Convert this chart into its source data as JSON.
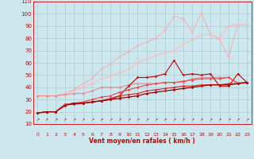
{
  "xlabel": "Vent moyen/en rafales ( km/h )",
  "xlim": [
    -0.5,
    23.5
  ],
  "ylim": [
    10,
    110
  ],
  "yticks": [
    10,
    20,
    30,
    40,
    50,
    60,
    70,
    80,
    90,
    100,
    110
  ],
  "xticks": [
    0,
    1,
    2,
    3,
    4,
    5,
    6,
    7,
    8,
    9,
    10,
    11,
    12,
    13,
    14,
    15,
    16,
    17,
    18,
    19,
    20,
    21,
    22,
    23
  ],
  "bg_color": "#cce8ee",
  "grid_color": "#aaccd4",
  "text_color": "#cc0000",
  "series": [
    {
      "x": [
        0,
        1,
        2,
        3,
        4,
        5,
        6,
        7,
        8,
        9,
        10,
        11,
        12,
        13,
        14,
        15,
        16,
        17,
        18,
        19,
        20,
        21,
        22,
        23
      ],
      "y": [
        19,
        20,
        20,
        26,
        26,
        27,
        28,
        29,
        30,
        33,
        41,
        48,
        48,
        49,
        51,
        62,
        50,
        51,
        50,
        51,
        41,
        41,
        51,
        44
      ],
      "color": "#cc0000",
      "lw": 0.8,
      "marker": "D",
      "ms": 1.5,
      "zorder": 5
    },
    {
      "x": [
        0,
        1,
        2,
        3,
        4,
        5,
        6,
        7,
        8,
        9,
        10,
        11,
        12,
        13,
        14,
        15,
        16,
        17,
        18,
        19,
        20,
        21,
        22,
        23
      ],
      "y": [
        33,
        33,
        33,
        34,
        35,
        35,
        37,
        40,
        40,
        40,
        42,
        43,
        43,
        43,
        44,
        44,
        44,
        47,
        48,
        48,
        48,
        48,
        44,
        44
      ],
      "color": "#ee8888",
      "lw": 0.8,
      "marker": "D",
      "ms": 1.5,
      "zorder": 4
    },
    {
      "x": [
        0,
        1,
        2,
        3,
        4,
        5,
        6,
        7,
        8,
        9,
        10,
        11,
        12,
        13,
        14,
        15,
        16,
        17,
        18,
        19,
        20,
        21,
        22,
        23
      ],
      "y": [
        33,
        33,
        33,
        35,
        37,
        40,
        43,
        47,
        49,
        52,
        55,
        60,
        63,
        66,
        68,
        70,
        75,
        79,
        83,
        83,
        80,
        90,
        91,
        91
      ],
      "color": "#ffbbbb",
      "lw": 0.8,
      "marker": "D",
      "ms": 1.5,
      "zorder": 3
    },
    {
      "x": [
        0,
        1,
        2,
        3,
        4,
        5,
        6,
        7,
        8,
        9,
        10,
        11,
        12,
        13,
        14,
        15,
        16,
        17,
        18,
        19,
        20,
        21,
        22,
        23
      ],
      "y": [
        33,
        33,
        33,
        35,
        38,
        43,
        47,
        55,
        59,
        65,
        69,
        74,
        77,
        80,
        87,
        98,
        96,
        85,
        101,
        83,
        79,
        65,
        91,
        91
      ],
      "color": "#ffaaaa",
      "lw": 0.7,
      "marker": "D",
      "ms": 1.2,
      "zorder": 2
    },
    {
      "x": [
        0,
        1,
        2,
        3,
        4,
        5,
        6,
        7,
        8,
        9,
        10,
        11,
        12,
        13,
        14,
        15,
        16,
        17,
        18,
        19,
        20,
        21,
        22,
        23
      ],
      "y": [
        19,
        20,
        20,
        25,
        27,
        27,
        28,
        29,
        30,
        31,
        32,
        33,
        35,
        36,
        37,
        38,
        39,
        40,
        41,
        42,
        42,
        42,
        43,
        44
      ],
      "color": "#990000",
      "lw": 0.9,
      "marker": "D",
      "ms": 1.5,
      "zorder": 6
    },
    {
      "x": [
        0,
        1,
        2,
        3,
        4,
        5,
        6,
        7,
        8,
        9,
        10,
        11,
        12,
        13,
        14,
        15,
        16,
        17,
        18,
        19,
        20,
        21,
        22,
        23
      ],
      "y": [
        19,
        20,
        20,
        26,
        27,
        27,
        28,
        29,
        31,
        33,
        34,
        35,
        37,
        38,
        39,
        40,
        41,
        41,
        42,
        42,
        42,
        43,
        43,
        44
      ],
      "color": "#dd2222",
      "lw": 0.8,
      "marker": "D",
      "ms": 1.5,
      "zorder": 5
    },
    {
      "x": [
        0,
        1,
        2,
        3,
        4,
        5,
        6,
        7,
        8,
        9,
        10,
        11,
        12,
        13,
        14,
        15,
        16,
        17,
        18,
        19,
        20,
        21,
        22,
        23
      ],
      "y": [
        19,
        20,
        20,
        26,
        27,
        28,
        30,
        32,
        33,
        36,
        38,
        40,
        42,
        43,
        44,
        44,
        45,
        46,
        47,
        47,
        47,
        48,
        43,
        44
      ],
      "color": "#ee4444",
      "lw": 0.8,
      "marker": "D",
      "ms": 1.5,
      "zorder": 5
    }
  ]
}
